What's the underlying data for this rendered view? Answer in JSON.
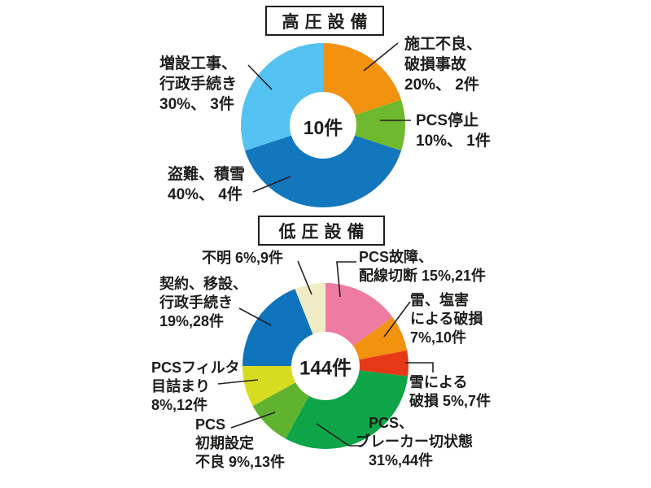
{
  "page": {
    "background": "#ffffff",
    "text_color": "#1d1d1b"
  },
  "chart_data": [
    {
      "type": "pie",
      "variant": "donut",
      "title": "高圧設備",
      "center_label": "10件",
      "total_count": 10,
      "unit": "件",
      "start_angle_deg": 0,
      "direction": "clockwise",
      "slices": [
        {
          "name": "施工不良、破損事故",
          "pct": 20,
          "count": 2,
          "color": "#F2920E",
          "label_lines": [
            "施工不良、",
            "破損事故",
            "20%、 2件"
          ]
        },
        {
          "name": "PCS停止",
          "pct": 10,
          "count": 1,
          "color": "#6EB92D",
          "label_lines": [
            "PCS停止",
            "10%、 1件"
          ]
        },
        {
          "name": "盗難、積雪",
          "pct": 40,
          "count": 4,
          "color": "#1377BE",
          "label_lines": [
            "盗難、積雪",
            "40%、 4件"
          ]
        },
        {
          "name": "増設工事、行政手続き",
          "pct": 30,
          "count": 3,
          "color": "#55C3F1",
          "label_lines": [
            "増設工事、",
            "行政手続き",
            "30%、 3件"
          ]
        }
      ]
    },
    {
      "type": "pie",
      "variant": "donut",
      "title": "低圧設備",
      "center_label": "144件",
      "total_count": 144,
      "unit": "件",
      "start_angle_deg": 0,
      "direction": "clockwise",
      "slices": [
        {
          "name": "PCS故障、配線切断",
          "pct": 15,
          "count": 21,
          "color": "#EE7CA2",
          "label_lines": [
            "PCS故障、",
            "配線切断 15%,21件"
          ]
        },
        {
          "name": "雷、塩害による破損",
          "pct": 7,
          "count": 10,
          "color": "#F2920E",
          "label_lines": [
            "雷、塩害",
            "による破損",
            "7%,10件"
          ]
        },
        {
          "name": "雪による破損",
          "pct": 5,
          "count": 7,
          "color": "#E73817",
          "label_lines": [
            "雪による",
            "破損 5%,7件"
          ]
        },
        {
          "name": "PCS、ブレーカー切状態",
          "pct": 31,
          "count": 44,
          "color": "#0DA547",
          "label_lines": [
            "PCS、",
            "ブレーカー切状態",
            "31%,44件"
          ]
        },
        {
          "name": "PCS初期設定不良",
          "pct": 9,
          "count": 13,
          "color": "#5FB32F",
          "label_lines": [
            "PCS",
            "初期設定",
            "不良 9%,13件"
          ]
        },
        {
          "name": "PCSフィルタ目詰まり",
          "pct": 8,
          "count": 12,
          "color": "#D8DC20",
          "label_lines": [
            "PCSフィルタ",
            "目詰まり",
            "8%,12件"
          ]
        },
        {
          "name": "契約、移設、行政手続き",
          "pct": 19,
          "count": 28,
          "color": "#1074BC",
          "label_lines": [
            "契約、移設、",
            "行政手続き",
            "19%,28件"
          ]
        },
        {
          "name": "不明",
          "pct": 6,
          "count": 9,
          "color": "#F0ECC5",
          "label_lines": [
            "不明 6%,9件"
          ]
        }
      ]
    }
  ]
}
